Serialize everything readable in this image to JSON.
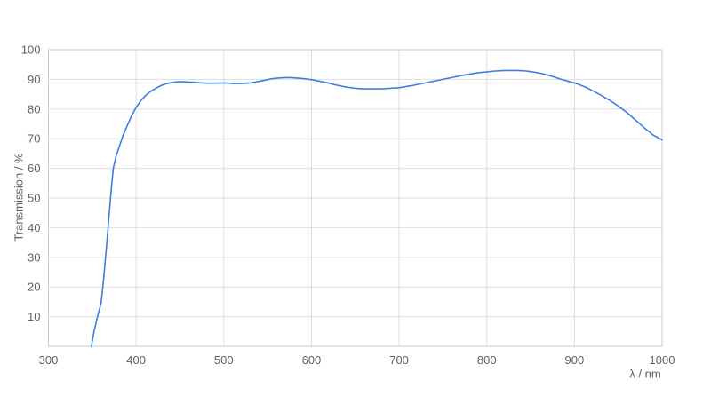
{
  "page": {
    "background_color": "#ffffff"
  },
  "chart_data": {
    "type": "line",
    "title": "",
    "xlabel": "λ / nm",
    "ylabel": "Transmission / %",
    "xlim": [
      300,
      1000
    ],
    "ylim": [
      0,
      100
    ],
    "x_ticks": [
      300,
      400,
      500,
      600,
      700,
      800,
      900,
      1000
    ],
    "y_ticks": [
      10,
      20,
      30,
      40,
      50,
      60,
      70,
      80,
      90,
      100
    ],
    "grid": true,
    "legend_position": "none",
    "colors": {
      "line": "#3f7de0",
      "grid": "#dedede",
      "frame": "#c9c9c9",
      "tick_label": "#5f5f5f",
      "axis_title": "#5f5f5f",
      "background": "#ffffff"
    },
    "series": [
      {
        "name": "Transmission",
        "points": [
          [
            349,
            0
          ],
          [
            352,
            5
          ],
          [
            356,
            10
          ],
          [
            360,
            14.5
          ],
          [
            362,
            20
          ],
          [
            364,
            26
          ],
          [
            366,
            33
          ],
          [
            368,
            40
          ],
          [
            370,
            47
          ],
          [
            372,
            54
          ],
          [
            374,
            60
          ],
          [
            377,
            64
          ],
          [
            381,
            67.5
          ],
          [
            385,
            71
          ],
          [
            390,
            74.5
          ],
          [
            395,
            77.8
          ],
          [
            400,
            80.5
          ],
          [
            405,
            82.7
          ],
          [
            410,
            84.3
          ],
          [
            415,
            85.6
          ],
          [
            420,
            86.6
          ],
          [
            425,
            87.4
          ],
          [
            430,
            88.1
          ],
          [
            435,
            88.6
          ],
          [
            440,
            88.9
          ],
          [
            445,
            89.1
          ],
          [
            450,
            89.2
          ],
          [
            455,
            89.2
          ],
          [
            460,
            89.1
          ],
          [
            465,
            89.0
          ],
          [
            470,
            88.9
          ],
          [
            475,
            88.8
          ],
          [
            480,
            88.7
          ],
          [
            490,
            88.7
          ],
          [
            500,
            88.8
          ],
          [
            505,
            88.7
          ],
          [
            510,
            88.6
          ],
          [
            520,
            88.6
          ],
          [
            525,
            88.7
          ],
          [
            530,
            88.8
          ],
          [
            535,
            89.0
          ],
          [
            540,
            89.3
          ],
          [
            545,
            89.6
          ],
          [
            550,
            89.9
          ],
          [
            555,
            90.2
          ],
          [
            560,
            90.4
          ],
          [
            565,
            90.5
          ],
          [
            570,
            90.6
          ],
          [
            575,
            90.6
          ],
          [
            580,
            90.5
          ],
          [
            585,
            90.4
          ],
          [
            590,
            90.3
          ],
          [
            595,
            90.1
          ],
          [
            600,
            89.9
          ],
          [
            605,
            89.6
          ],
          [
            610,
            89.3
          ],
          [
            615,
            89.0
          ],
          [
            620,
            88.7
          ],
          [
            625,
            88.3
          ],
          [
            630,
            88.0
          ],
          [
            635,
            87.7
          ],
          [
            640,
            87.4
          ],
          [
            645,
            87.2
          ],
          [
            650,
            87.0
          ],
          [
            655,
            86.9
          ],
          [
            660,
            86.8
          ],
          [
            670,
            86.8
          ],
          [
            680,
            86.8
          ],
          [
            685,
            86.9
          ],
          [
            690,
            87.0
          ],
          [
            695,
            87.1
          ],
          [
            700,
            87.2
          ],
          [
            705,
            87.4
          ],
          [
            710,
            87.7
          ],
          [
            715,
            87.9
          ],
          [
            720,
            88.2
          ],
          [
            725,
            88.5
          ],
          [
            730,
            88.8
          ],
          [
            735,
            89.1
          ],
          [
            740,
            89.4
          ],
          [
            745,
            89.7
          ],
          [
            750,
            90.0
          ],
          [
            755,
            90.3
          ],
          [
            760,
            90.6
          ],
          [
            765,
            90.9
          ],
          [
            770,
            91.2
          ],
          [
            775,
            91.5
          ],
          [
            780,
            91.7
          ],
          [
            785,
            92.0
          ],
          [
            790,
            92.2
          ],
          [
            795,
            92.4
          ],
          [
            800,
            92.5
          ],
          [
            805,
            92.7
          ],
          [
            810,
            92.8
          ],
          [
            815,
            92.9
          ],
          [
            820,
            93.0
          ],
          [
            830,
            93.0
          ],
          [
            835,
            93.0
          ],
          [
            840,
            92.9
          ],
          [
            845,
            92.8
          ],
          [
            850,
            92.6
          ],
          [
            855,
            92.4
          ],
          [
            860,
            92.1
          ],
          [
            865,
            91.8
          ],
          [
            870,
            91.4
          ],
          [
            875,
            91.0
          ],
          [
            880,
            90.5
          ],
          [
            885,
            90.0
          ],
          [
            890,
            89.6
          ],
          [
            895,
            89.2
          ],
          [
            900,
            88.8
          ],
          [
            905,
            88.3
          ],
          [
            910,
            87.7
          ],
          [
            915,
            87.0
          ],
          [
            920,
            86.3
          ],
          [
            925,
            85.5
          ],
          [
            930,
            84.7
          ],
          [
            935,
            83.8
          ],
          [
            940,
            83.0
          ],
          [
            945,
            82.0
          ],
          [
            950,
            81.0
          ],
          [
            955,
            79.9
          ],
          [
            960,
            78.8
          ],
          [
            965,
            77.5
          ],
          [
            970,
            76.2
          ],
          [
            975,
            74.9
          ],
          [
            980,
            73.6
          ],
          [
            985,
            72.4
          ],
          [
            990,
            71.2
          ],
          [
            995,
            70.4
          ],
          [
            1000,
            69.6
          ]
        ]
      }
    ]
  }
}
